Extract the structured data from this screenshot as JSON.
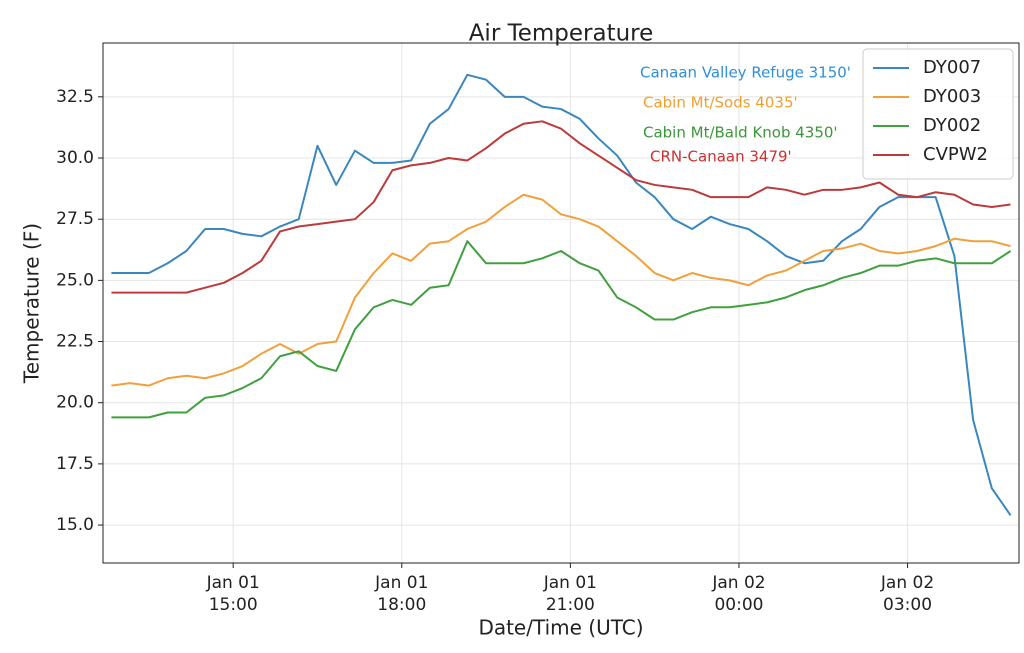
{
  "chart_data": {
    "type": "line",
    "title": "Air Temperature",
    "x_label": "Date/Time (UTC)",
    "y_label": "Temperature (F)",
    "x": [
      770,
      790,
      810,
      830,
      850,
      870,
      890,
      910,
      930,
      950,
      970,
      990,
      1010,
      1030,
      1050,
      1070,
      1090,
      1110,
      1130,
      1150,
      1170,
      1190,
      1210,
      1230,
      1250,
      1270,
      1290,
      1310,
      1330,
      1350,
      1370,
      1390,
      1410,
      1430,
      1450,
      1470,
      1490,
      1510,
      1530,
      1550,
      1570,
      1590,
      1610,
      1630,
      1650,
      1670,
      1690,
      1710,
      1730
    ],
    "xlim": [
      761,
      1739
    ],
    "xticks": [
      {
        "value": 900,
        "label": [
          "Jan 01",
          "15:00"
        ]
      },
      {
        "value": 1080,
        "label": [
          "Jan 01",
          "18:00"
        ]
      },
      {
        "value": 1260,
        "label": [
          "Jan 01",
          "21:00"
        ]
      },
      {
        "value": 1440,
        "label": [
          "Jan 02",
          "00:00"
        ]
      },
      {
        "value": 1620,
        "label": [
          "Jan 02",
          "03:00"
        ]
      }
    ],
    "ylim": [
      13.45,
      34.7
    ],
    "yticks": [
      {
        "value": 15,
        "label": "15.0"
      },
      17.5,
      {
        "value": 20,
        "label": "20.0"
      },
      22.5,
      {
        "value": 25,
        "label": "25.0"
      },
      27.5,
      {
        "value": 30,
        "label": "30.0"
      },
      32.5
    ],
    "grid": true,
    "legend": "upper right",
    "series": [
      {
        "name": "DY007",
        "color": "#3a87bd",
        "values": [
          25.3,
          25.3,
          25.3,
          25.7,
          26.2,
          27.1,
          27.1,
          26.9,
          26.8,
          27.2,
          27.5,
          30.5,
          28.9,
          30.3,
          29.8,
          29.8,
          29.9,
          31.4,
          32.0,
          33.4,
          33.2,
          32.5,
          32.5,
          32.1,
          32.0,
          31.6,
          30.8,
          30.1,
          29.0,
          28.4,
          27.5,
          27.1,
          27.6,
          27.3,
          27.1,
          26.6,
          26.0,
          25.7,
          25.8,
          26.6,
          27.1,
          28.0,
          28.4,
          28.4,
          28.4,
          26.0,
          19.3,
          16.5,
          15.4
        ]
      },
      {
        "name": "DY003",
        "color": "#f0a03c",
        "values": [
          20.7,
          20.8,
          20.7,
          21.0,
          21.1,
          21.0,
          21.2,
          21.5,
          22.0,
          22.4,
          22.0,
          22.4,
          22.5,
          24.3,
          25.3,
          26.1,
          25.8,
          26.5,
          26.6,
          27.1,
          27.4,
          28.0,
          28.5,
          28.3,
          27.7,
          27.5,
          27.2,
          26.6,
          26.0,
          25.3,
          25.0,
          25.3,
          25.1,
          25.0,
          24.8,
          25.2,
          25.4,
          25.8,
          26.2,
          26.3,
          26.5,
          26.2,
          26.1,
          26.2,
          26.4,
          26.7,
          26.6,
          26.6,
          26.4
        ]
      },
      {
        "name": "DY002",
        "color": "#40a040",
        "values": [
          19.4,
          19.4,
          19.4,
          19.6,
          19.6,
          20.2,
          20.3,
          20.6,
          21.0,
          21.9,
          22.1,
          21.5,
          21.3,
          23.0,
          23.9,
          24.2,
          24.0,
          24.7,
          24.8,
          26.6,
          25.7,
          25.7,
          25.7,
          25.9,
          26.2,
          25.7,
          25.4,
          24.3,
          23.9,
          23.4,
          23.4,
          23.7,
          23.9,
          23.9,
          24.0,
          24.1,
          24.3,
          24.6,
          24.8,
          25.1,
          25.3,
          25.6,
          25.6,
          25.8,
          25.9,
          25.7,
          25.7,
          25.7,
          26.2
        ]
      },
      {
        "name": "CVPW2",
        "color": "#bd3a3a",
        "values": [
          24.5,
          24.5,
          24.5,
          24.5,
          24.5,
          24.7,
          24.9,
          25.3,
          25.8,
          27.0,
          27.2,
          27.3,
          27.4,
          27.5,
          28.2,
          29.5,
          29.7,
          29.8,
          30.0,
          29.9,
          30.4,
          31.0,
          31.4,
          31.5,
          31.2,
          30.6,
          30.1,
          29.6,
          29.1,
          28.9,
          28.8,
          28.7,
          28.4,
          28.4,
          28.4,
          28.8,
          28.7,
          28.5,
          28.7,
          28.7,
          28.8,
          29.0,
          28.5,
          28.4,
          28.6,
          28.5,
          28.1,
          28.0,
          28.1
        ]
      }
    ],
    "annotations": [
      {
        "text": "Canaan Valley Refuge 3150'",
        "color": "#2f8fd8"
      },
      {
        "text": "Cabin Mt/Sods 4035'",
        "color": "#f0a030"
      },
      {
        "text": "Cabin Mt/Bald Knob 4350'",
        "color": "#3c963c"
      },
      {
        "text": "CRN-Canaan 3479'",
        "color": "#c83232"
      }
    ]
  }
}
